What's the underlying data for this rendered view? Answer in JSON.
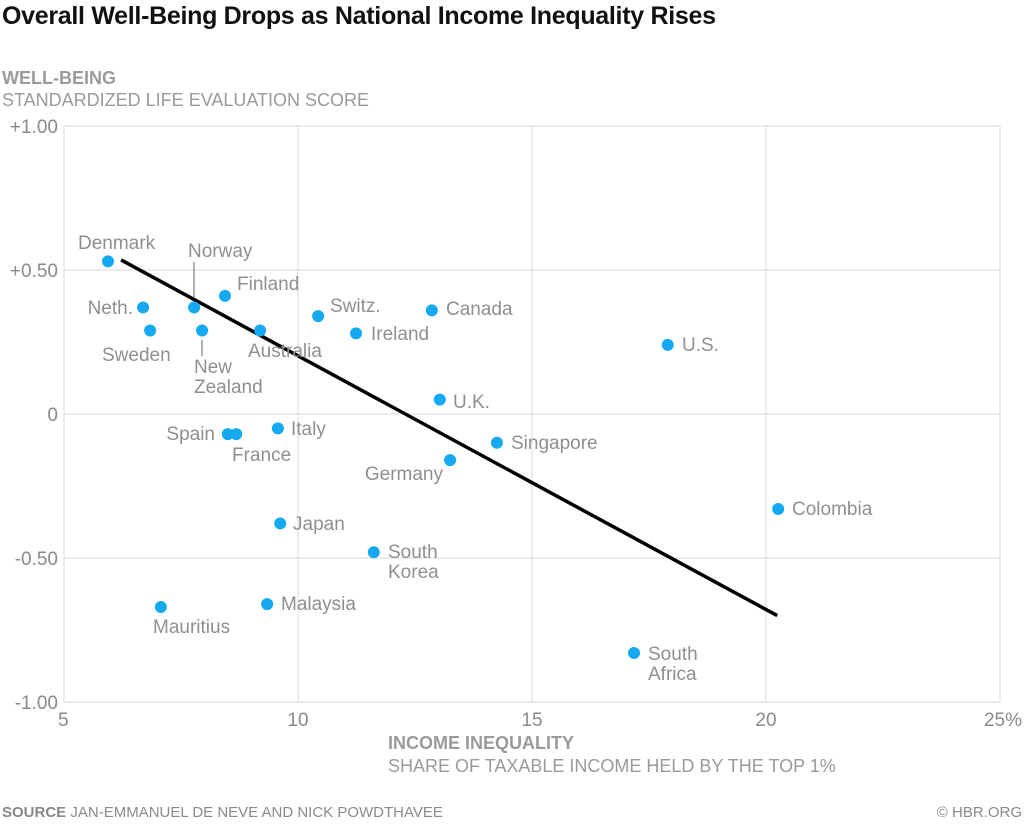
{
  "chart_data": {
    "type": "scatter",
    "title": "Overall Well-Being Drops as National Income Inequality Rises",
    "ylabel": "WELL-BEING",
    "ysublabel": "STANDARDIZED LIFE EVALUATION SCORE",
    "xlabel": "INCOME INEQUALITY",
    "xsublabel": "SHARE OF TAXABLE INCOME HELD BY THE TOP 1%",
    "xlim": [
      5,
      25
    ],
    "ylim": [
      -1,
      1
    ],
    "xticks": [
      "5",
      "10",
      "15",
      "20",
      "25%"
    ],
    "yticks": [
      "+1.00",
      "+0.50",
      "0",
      "-0.50",
      "-1.00"
    ],
    "grid": true,
    "point_color": "#14a9f0",
    "trend_color": "#000000",
    "points": [
      {
        "label": "Denmark",
        "x": 5.94,
        "y": 0.53
      },
      {
        "label": "Neth.",
        "x": 6.69,
        "y": 0.37
      },
      {
        "label": "Sweden",
        "x": 6.84,
        "y": 0.29
      },
      {
        "label": "Norway",
        "x": 7.78,
        "y": 0.37
      },
      {
        "label": "New Zealand",
        "x": 7.95,
        "y": 0.29
      },
      {
        "label": "Finland",
        "x": 8.44,
        "y": 0.41
      },
      {
        "label": "Australia",
        "x": 9.19,
        "y": 0.29
      },
      {
        "label": "Switz.",
        "x": 10.43,
        "y": 0.34
      },
      {
        "label": "Ireland",
        "x": 11.24,
        "y": 0.28
      },
      {
        "label": "Canada",
        "x": 12.86,
        "y": 0.36
      },
      {
        "label": "U.S.",
        "x": 17.9,
        "y": 0.24
      },
      {
        "label": "U.K.",
        "x": 13.03,
        "y": 0.05
      },
      {
        "label": "Singapore",
        "x": 14.25,
        "y": -0.1
      },
      {
        "label": "Germany",
        "x": 13.25,
        "y": -0.16
      },
      {
        "label": "Spain",
        "x": 8.5,
        "y": -0.07
      },
      {
        "label": "France",
        "x": 8.68,
        "y": -0.07
      },
      {
        "label": "Italy",
        "x": 9.57,
        "y": -0.05
      },
      {
        "label": "Japan",
        "x": 9.62,
        "y": -0.38
      },
      {
        "label": "South Korea",
        "x": 11.62,
        "y": -0.48
      },
      {
        "label": "Malaysia",
        "x": 9.34,
        "y": -0.66
      },
      {
        "label": "Mauritius",
        "x": 7.07,
        "y": -0.67
      },
      {
        "label": "South Africa",
        "x": 17.18,
        "y": -0.83
      },
      {
        "label": "Colombia",
        "x": 20.26,
        "y": -0.33
      }
    ],
    "trend_line": [
      {
        "x": 6.22,
        "y": 0.535
      },
      {
        "x": 20.24,
        "y": -0.7
      }
    ]
  },
  "footer": {
    "source_label": "SOURCE",
    "source_text": "JAN-EMMANUEL DE NEVE AND NICK POWDTHAVEE",
    "credit": "© HBR.ORG"
  }
}
